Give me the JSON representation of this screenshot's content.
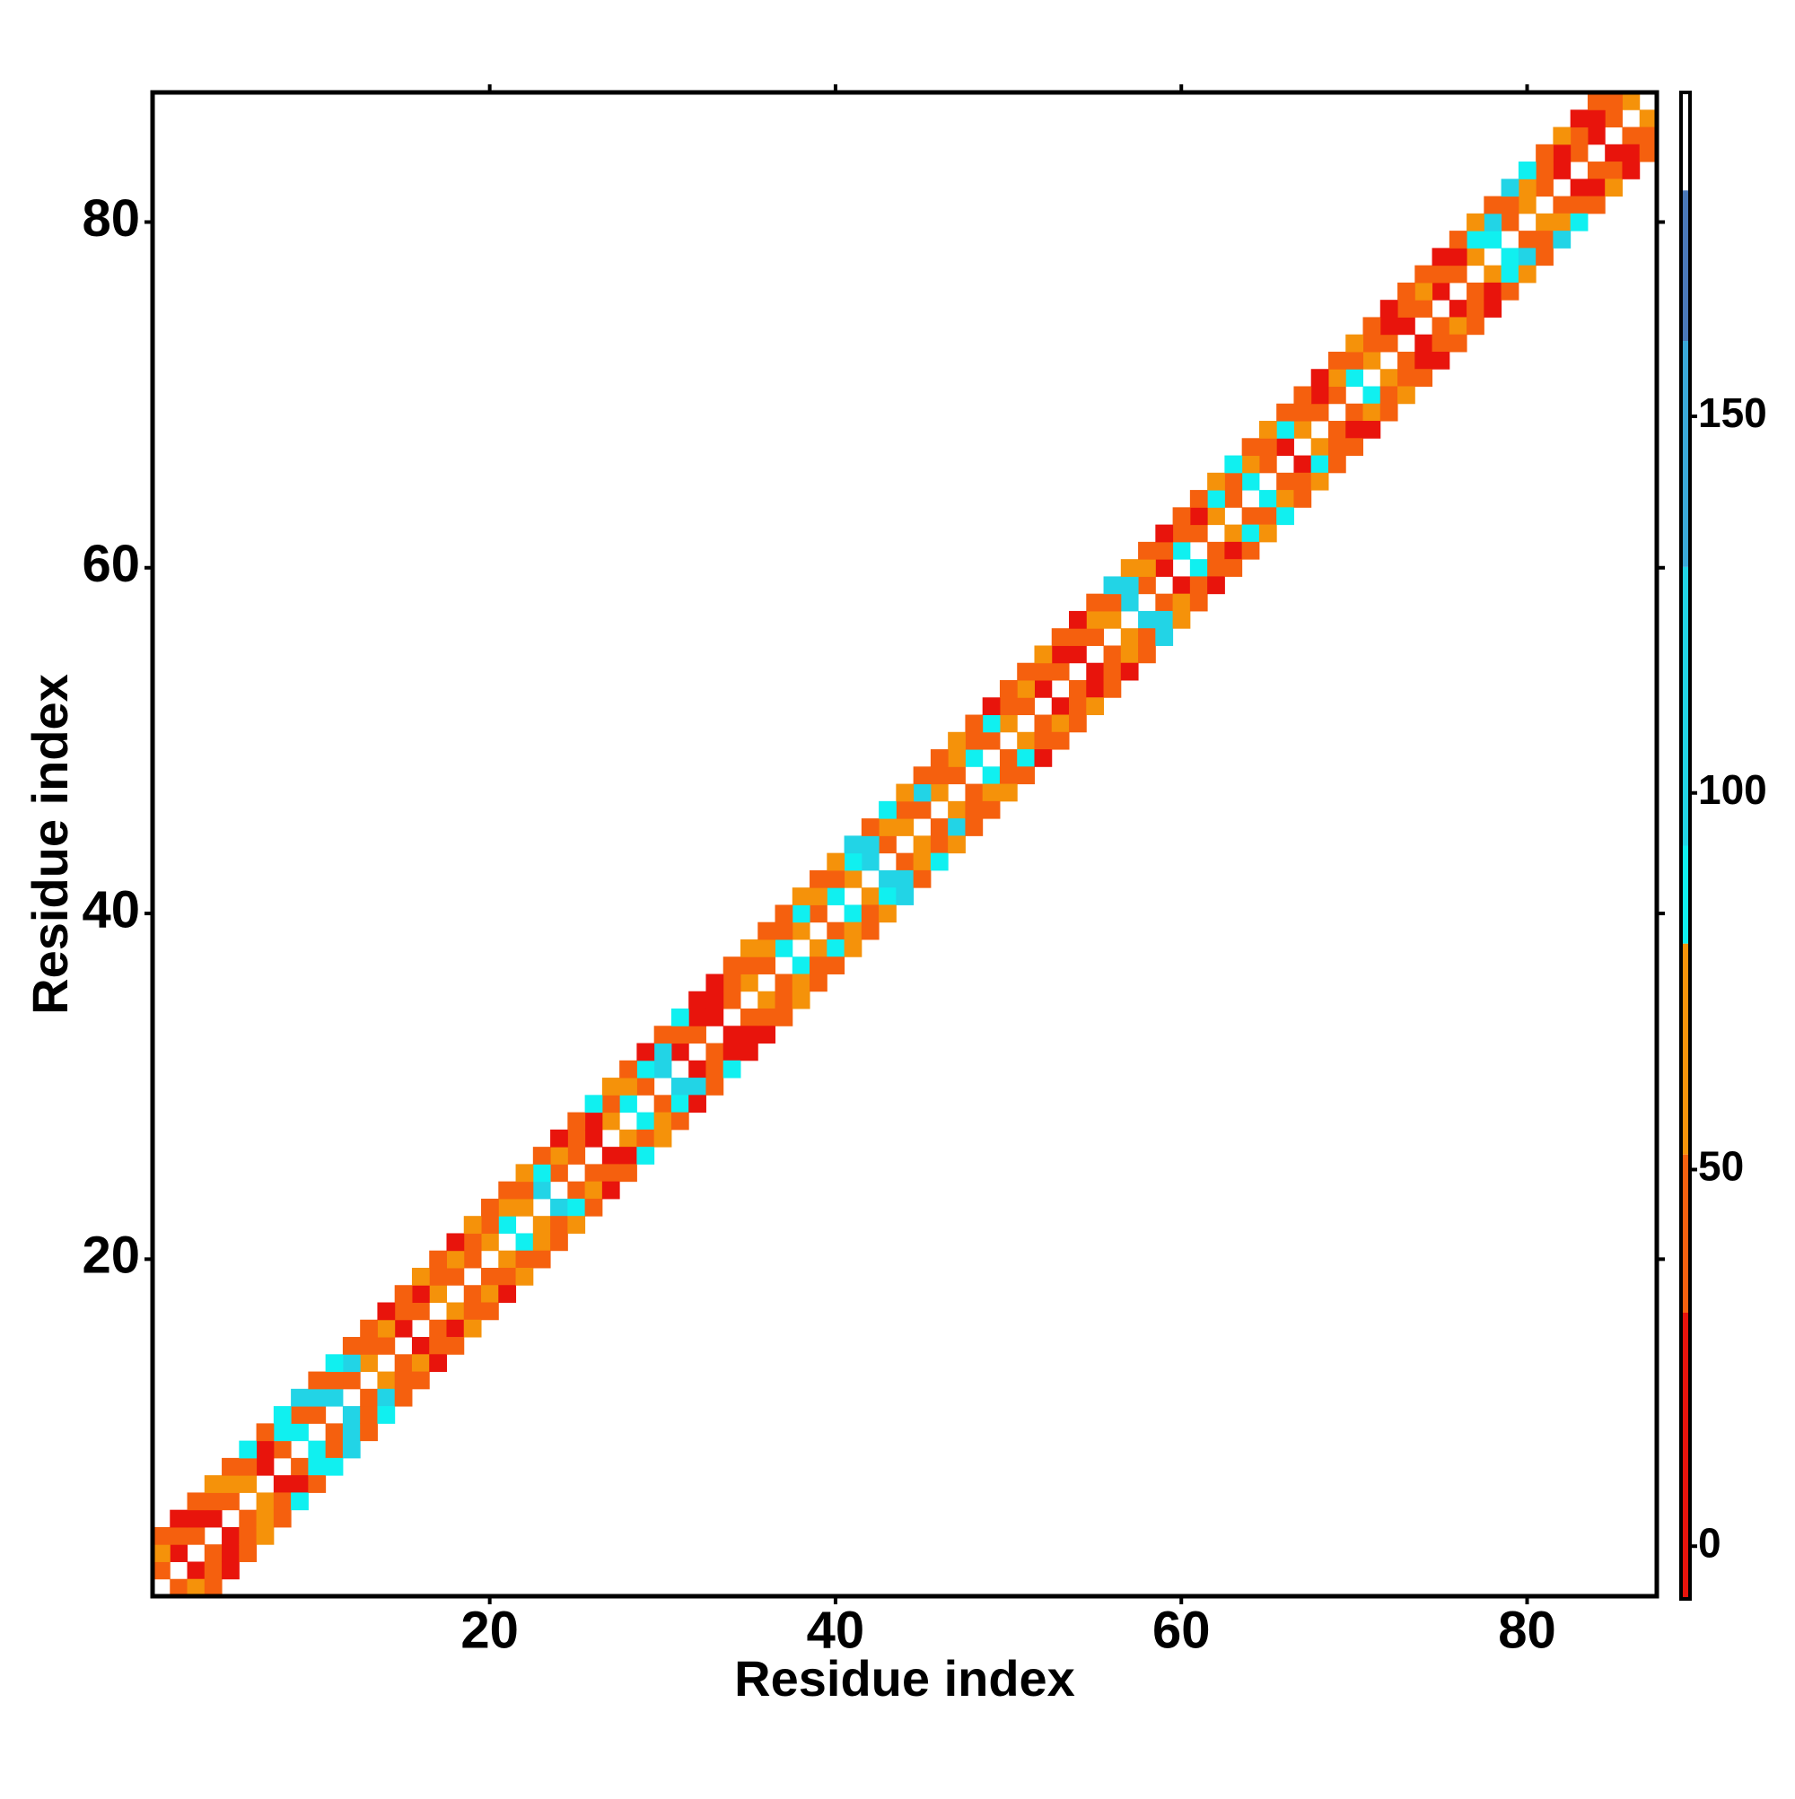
{
  "chart_data": {
    "type": "heatmap",
    "xlabel": "Residue index",
    "ylabel": "Residue index",
    "xlim": [
      0.5,
      87.5
    ],
    "ylim": [
      0.5,
      87.5
    ],
    "xticks": [
      20,
      40,
      60,
      80
    ],
    "yticks": [
      20,
      40,
      60,
      80
    ],
    "symmetric": true,
    "diagonals": [
      {
        "offset": 1,
        "values": [
          40,
          20,
          40,
          20,
          40,
          62,
          20,
          40,
          88,
          40,
          100,
          40,
          62,
          40,
          20,
          40,
          62,
          40,
          40,
          62,
          88,
          62,
          100,
          40,
          40,
          20,
          62,
          88,
          40,
          100,
          20,
          40,
          20,
          40,
          62,
          40,
          88,
          62,
          40,
          88,
          62,
          100,
          40,
          62,
          40,
          62,
          40,
          88,
          40,
          62,
          40,
          20,
          40,
          20,
          40,
          62,
          100,
          40,
          20,
          88,
          40,
          62,
          40,
          88,
          40,
          20,
          62,
          40,
          40,
          88,
          62,
          40,
          20,
          40,
          20,
          40,
          62,
          88,
          40,
          62,
          40,
          20,
          40,
          20,
          40,
          62
        ]
      },
      {
        "offset": 2,
        "values": [
          62,
          40,
          20,
          40,
          62,
          40,
          20,
          88,
          40,
          100,
          40,
          100,
          40,
          62,
          40,
          20,
          40,
          62,
          40,
          40,
          62,
          40,
          88,
          62,
          40,
          20,
          40,
          62,
          88,
          100,
          40,
          20,
          20,
          40,
          40,
          62,
          40,
          88,
          62,
          40,
          88,
          100,
          62,
          40,
          100,
          40,
          62,
          40,
          88,
          40,
          62,
          40,
          20,
          40,
          62,
          40,
          100,
          62,
          40,
          40,
          20,
          88,
          40,
          62,
          40,
          88,
          40,
          20,
          62,
          40,
          40,
          20,
          40,
          62,
          40,
          20,
          88,
          100,
          40,
          62,
          40,
          20,
          40,
          20,
          40
        ]
      },
      {
        "offset": 3,
        "values": [
          40,
          20,
          40,
          62,
          40,
          88,
          40,
          88,
          100,
          40,
          88,
          40,
          40,
          20,
          40,
          62,
          40,
          20,
          62,
          40,
          40,
          62,
          40,
          20,
          40,
          88,
          62,
          40,
          20,
          40,
          88,
          20,
          20,
          40,
          62,
          40,
          40,
          62,
          40,
          62,
          100,
          40,
          88,
          62,
          40,
          40,
          62,
          40,
          20,
          40,
          40,
          62,
          40,
          20,
          40,
          100,
          62,
          40,
          20,
          40,
          40,
          62,
          88,
          40,
          62,
          40,
          40,
          20,
          40,
          62,
          40,
          20,
          40,
          40,
          20,
          40,
          62,
          40,
          100,
          88,
          40,
          62,
          20,
          40
        ]
      }
    ],
    "colorbar": {
      "zlim": [
        -7,
        193
      ],
      "zticks": [
        0,
        50,
        100,
        150
      ],
      "stops": [
        {
          "value": -7,
          "color": "#e8140c"
        },
        {
          "value": 31,
          "color": "#f5600e"
        },
        {
          "value": 52,
          "color": "#f5920a"
        },
        {
          "value": 80,
          "color": "#10f0f0"
        },
        {
          "value": 93,
          "color": "#22d4e6"
        },
        {
          "value": 130,
          "color": "#3aa8d8"
        },
        {
          "value": 160,
          "color": "#4a78b8"
        },
        {
          "value": 180,
          "color": "#ffffff"
        }
      ]
    }
  }
}
